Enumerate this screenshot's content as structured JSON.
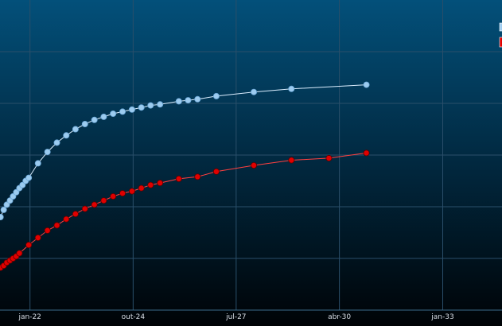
{
  "chart_data": {
    "type": "line",
    "title": "",
    "xlabel": "",
    "ylabel": "",
    "x_axis": {
      "type": "date",
      "range": [
        "2021-03-15",
        "2034-08-01"
      ],
      "ticks": [
        {
          "date": "2022-01-01",
          "label": "jan-22"
        },
        {
          "date": "2024-10-01",
          "label": "out-24"
        },
        {
          "date": "2027-07-01",
          "label": "jul-27"
        },
        {
          "date": "2030-04-01",
          "label": "abr-30"
        },
        {
          "date": "2033-01-01",
          "label": "jan-33"
        }
      ]
    },
    "y_axis": {
      "range": [
        0,
        6
      ],
      "gridlines": [
        1,
        2,
        3,
        4,
        5
      ]
    },
    "grid": true,
    "legend_placement": "top-right",
    "colors": {
      "background_top": "#03507a",
      "background_bottom": "#000306",
      "gridline": "#2a4f6a",
      "series_light": "#9ccbef",
      "series_red": "#e00000"
    },
    "series": [
      {
        "color": "#9ccbef",
        "stroke": "#dbeeff",
        "points": [
          [
            "2021-03-20",
            1.8
          ],
          [
            "2021-04-20",
            1.94
          ],
          [
            "2021-05-20",
            2.04
          ],
          [
            "2021-06-20",
            2.12
          ],
          [
            "2021-07-20",
            2.2
          ],
          [
            "2021-08-20",
            2.28
          ],
          [
            "2021-09-20",
            2.36
          ],
          [
            "2021-10-20",
            2.42
          ],
          [
            "2021-11-20",
            2.5
          ],
          [
            "2021-12-20",
            2.56
          ],
          [
            "2022-03-20",
            2.84
          ],
          [
            "2022-06-20",
            3.06
          ],
          [
            "2022-09-20",
            3.24
          ],
          [
            "2022-12-20",
            3.38
          ],
          [
            "2023-03-20",
            3.5
          ],
          [
            "2023-06-20",
            3.6
          ],
          [
            "2023-09-20",
            3.68
          ],
          [
            "2023-12-20",
            3.74
          ],
          [
            "2024-03-20",
            3.8
          ],
          [
            "2024-06-20",
            3.84
          ],
          [
            "2024-09-20",
            3.88
          ],
          [
            "2024-12-20",
            3.92
          ],
          [
            "2025-03-20",
            3.96
          ],
          [
            "2025-06-20",
            3.98
          ],
          [
            "2025-12-20",
            4.04
          ],
          [
            "2026-03-20",
            4.06
          ],
          [
            "2026-06-20",
            4.08
          ],
          [
            "2026-12-20",
            4.14
          ],
          [
            "2027-12-20",
            4.22
          ],
          [
            "2028-12-20",
            4.28
          ],
          [
            "2030-12-20",
            4.36
          ]
        ]
      },
      {
        "color": "#e00000",
        "stroke": "#ff4040",
        "points": [
          [
            "2021-03-20",
            0.82
          ],
          [
            "2021-04-20",
            0.86
          ],
          [
            "2021-05-20",
            0.92
          ],
          [
            "2021-06-20",
            0.96
          ],
          [
            "2021-07-20",
            1.0
          ],
          [
            "2021-08-20",
            1.04
          ],
          [
            "2021-09-20",
            1.1
          ],
          [
            "2021-12-20",
            1.26
          ],
          [
            "2022-03-20",
            1.4
          ],
          [
            "2022-06-20",
            1.54
          ],
          [
            "2022-09-20",
            1.64
          ],
          [
            "2022-12-20",
            1.76
          ],
          [
            "2023-03-20",
            1.86
          ],
          [
            "2023-06-20",
            1.96
          ],
          [
            "2023-09-20",
            2.04
          ],
          [
            "2023-12-20",
            2.12
          ],
          [
            "2024-03-20",
            2.2
          ],
          [
            "2024-06-20",
            2.26
          ],
          [
            "2024-09-20",
            2.3
          ],
          [
            "2024-12-20",
            2.36
          ],
          [
            "2025-03-20",
            2.42
          ],
          [
            "2025-06-20",
            2.46
          ],
          [
            "2025-12-20",
            2.54
          ],
          [
            "2026-06-20",
            2.58
          ],
          [
            "2026-12-20",
            2.68
          ],
          [
            "2027-12-20",
            2.8
          ],
          [
            "2028-12-20",
            2.9
          ],
          [
            "2029-12-20",
            2.94
          ],
          [
            "2030-12-20",
            3.04
          ]
        ]
      }
    ]
  }
}
